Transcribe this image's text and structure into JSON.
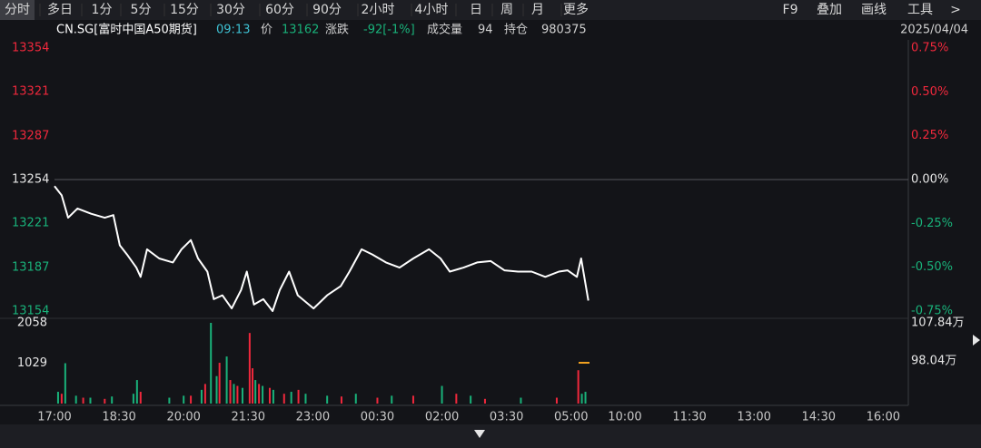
{
  "toolbar": {
    "left": [
      "分时",
      "多日",
      "1分",
      "5分",
      "15分",
      "30分",
      "60分",
      "90分",
      "2小时",
      "4小时",
      "日",
      "周",
      "月",
      "更多"
    ],
    "right": [
      "F9",
      "叠加",
      "画线",
      "工具",
      ">"
    ]
  },
  "info": {
    "code": "CN.SG[富时中国A50期货]",
    "time": "09:13",
    "price_label": "价",
    "price": "13162",
    "change_label": "涨跌",
    "change": "-92[-1%]",
    "volume_label": "成交量",
    "volume": "94",
    "oi_label": "持仓",
    "oi": "980375",
    "date": "2025/04/04"
  },
  "chart_data": {
    "type": "line",
    "xlim": [
      0,
      1190
    ],
    "xticks": [
      {
        "value": 0,
        "label": "17:00"
      },
      {
        "value": 90,
        "label": "18:30"
      },
      {
        "value": 180,
        "label": "20:00"
      },
      {
        "value": 270,
        "label": "21:30"
      },
      {
        "value": 360,
        "label": "23:00"
      },
      {
        "value": 450,
        "label": "00:30"
      },
      {
        "value": 540,
        "label": "02:00"
      },
      {
        "value": 630,
        "label": "03:30"
      },
      {
        "value": 720,
        "label": "05:00"
      },
      {
        "value": 795,
        "label": "10:00"
      },
      {
        "value": 885,
        "label": "11:30"
      },
      {
        "value": 975,
        "label": "13:00"
      },
      {
        "value": 1065,
        "label": "14:30"
      },
      {
        "value": 1155,
        "label": "16:00"
      }
    ],
    "ylim": [
      13154,
      13354
    ],
    "yticks": [
      13154,
      13187,
      13221,
      13254,
      13287,
      13321,
      13354
    ],
    "y2lim": [
      -0.75,
      0.75
    ],
    "y2ticks": [
      {
        "value": -0.75,
        "label": "-0.75%"
      },
      {
        "value": -0.5,
        "label": "-0.50%"
      },
      {
        "value": -0.25,
        "label": "-0.25%"
      },
      {
        "value": 0,
        "label": "0.00%"
      },
      {
        "value": 0.25,
        "label": "0.25%"
      },
      {
        "value": 0.5,
        "label": "0.50%"
      },
      {
        "value": 0.75,
        "label": "0.75%"
      }
    ],
    "up_color": "#f0283c",
    "down_color": "#19b27a",
    "flat_color": "#e6e6e6",
    "price": {
      "color": "#ffffff",
      "x": [
        0,
        10,
        19,
        32,
        51,
        70,
        82,
        91,
        101,
        114,
        120,
        129,
        146,
        165,
        177,
        190,
        200,
        213,
        222,
        234,
        247,
        260,
        268,
        278,
        291,
        304,
        314,
        327,
        339,
        361,
        380,
        399,
        411,
        428,
        443,
        462,
        481,
        500,
        522,
        538,
        551,
        570,
        589,
        608,
        627,
        646,
        665,
        684,
        703,
        715,
        728,
        734,
        744
      ],
      "values": [
        13249,
        13242,
        13225,
        13232,
        13228,
        13225,
        13227,
        13204,
        13197,
        13187,
        13180,
        13201,
        13194,
        13191,
        13201,
        13208,
        13194,
        13184,
        13163,
        13166,
        13156,
        13170,
        13184,
        13159,
        13163,
        13154,
        13170,
        13184,
        13166,
        13156,
        13166,
        13173,
        13184,
        13201,
        13197,
        13191,
        13187,
        13194,
        13201,
        13194,
        13184,
        13187,
        13191,
        13192,
        13185,
        13184,
        13184,
        13180,
        13184,
        13185,
        13180,
        13194,
        13162
      ]
    },
    "vol_ylim": [
      0,
      2058
    ],
    "vol_ticks": [
      1029,
      2058
    ],
    "oi_ylim": [
      87.07,
      107.84
    ],
    "oi_ticks": [
      {
        "value": 98.04,
        "label": "98.04万"
      },
      {
        "value": 107.84,
        "label": "107.84万"
      }
    ],
    "volume": [
      {
        "color": "#19b27a",
        "x": [
          5,
          15,
          30,
          50,
          80,
          110,
          115,
          160,
          180,
          205,
          218,
          226,
          240,
          250,
          262,
          280,
          290,
          305,
          330,
          350,
          380,
          420,
          470,
          540,
          580,
          650,
          735,
          740
        ],
        "values": [
          300,
          1029,
          200,
          150,
          180,
          250,
          600,
          150,
          200,
          350,
          2058,
          700,
          1200,
          500,
          400,
          600,
          450,
          350,
          300,
          250,
          200,
          250,
          200,
          450,
          200,
          150,
          250,
          300
        ]
      },
      {
        "color": "#f0283c",
        "x": [
          10,
          40,
          70,
          120,
          190,
          210,
          230,
          245,
          255,
          272,
          276,
          285,
          300,
          320,
          340,
          400,
          450,
          500,
          560,
          600,
          700,
          730
        ],
        "values": [
          250,
          150,
          120,
          300,
          200,
          500,
          1040,
          600,
          450,
          1800,
          900,
          500,
          400,
          250,
          350,
          180,
          150,
          200,
          250,
          120,
          150,
          850
        ]
      }
    ]
  }
}
